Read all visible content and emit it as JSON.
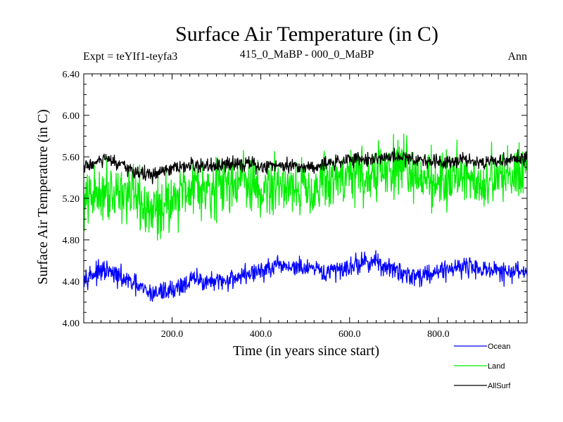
{
  "chart_data": {
    "type": "line",
    "title": "Surface Air Temperature (in C)",
    "subtitle_left": "Expt = teYIf1-teyfa3",
    "subtitle_center": "415_0_MaBP - 000_0_MaBP",
    "subtitle_right": "Ann",
    "xlabel": "Time (in years since start)",
    "ylabel": "Surface Air Temperature (in C)",
    "xlim": [
      1,
      1000
    ],
    "ylim": [
      4.0,
      6.4
    ],
    "xticks": [
      200,
      400,
      600,
      800
    ],
    "xtick_labels": [
      "200.0",
      "400.0",
      "600.0",
      "800.0"
    ],
    "yticks": [
      4.0,
      4.4,
      4.8,
      5.2,
      5.6,
      6.0,
      6.4
    ],
    "ytick_labels": [
      "4.00",
      "4.40",
      "4.80",
      "5.20",
      "5.60",
      "6.00",
      "6.40"
    ],
    "x_step": 50,
    "series": [
      {
        "name": "Ocean",
        "color": "#0000ff",
        "values": [
          4.45,
          4.5,
          4.4,
          4.28,
          4.32,
          4.42,
          4.38,
          4.45,
          4.5,
          4.55,
          4.52,
          4.48,
          4.55,
          4.6,
          4.5,
          4.45,
          4.5,
          4.55,
          4.52,
          4.48,
          4.5
        ]
      },
      {
        "name": "Land",
        "color": "#00ee00",
        "values": [
          5.15,
          5.3,
          5.25,
          5.05,
          5.2,
          5.35,
          5.3,
          5.4,
          5.25,
          5.35,
          5.3,
          5.35,
          5.45,
          5.4,
          5.5,
          5.45,
          5.35,
          5.45,
          5.35,
          5.4,
          5.55
        ]
      },
      {
        "name": "AllSurf",
        "color": "#000000",
        "values": [
          5.5,
          5.58,
          5.48,
          5.42,
          5.48,
          5.52,
          5.5,
          5.55,
          5.5,
          5.53,
          5.5,
          5.53,
          5.58,
          5.58,
          5.6,
          5.58,
          5.55,
          5.58,
          5.55,
          5.56,
          5.6
        ]
      }
    ]
  }
}
